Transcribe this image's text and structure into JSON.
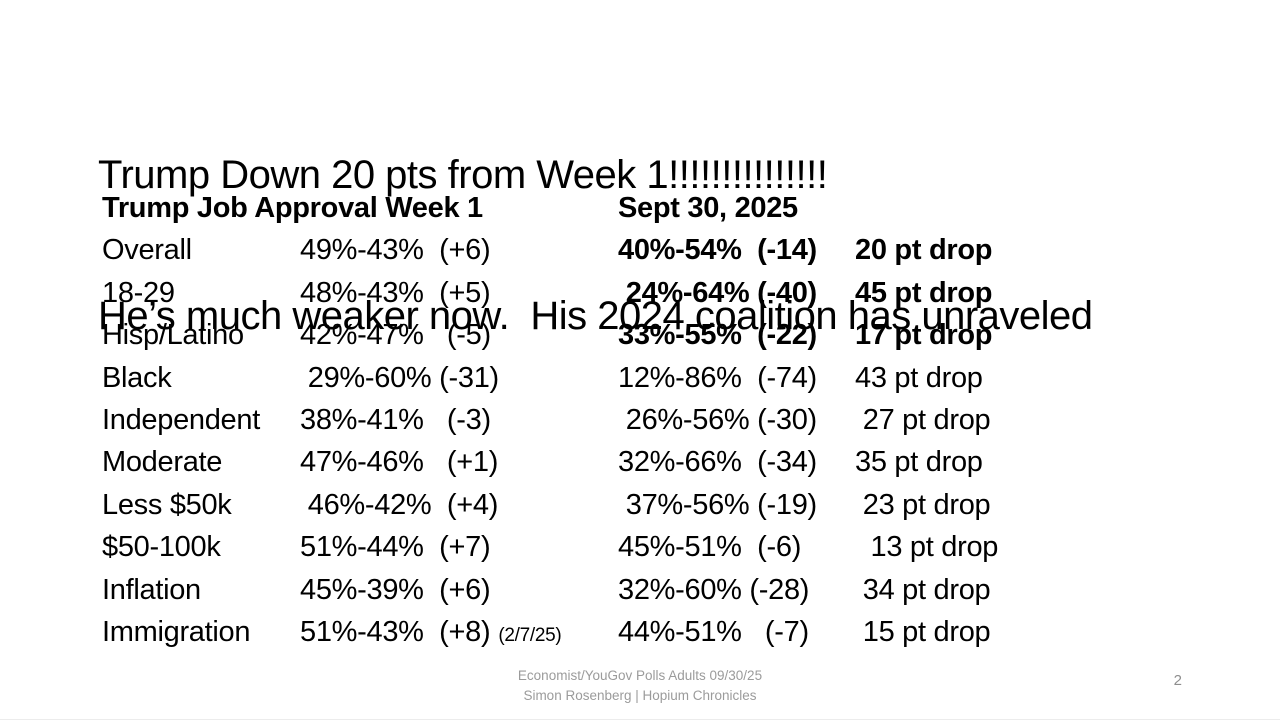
{
  "slide": {
    "title": {
      "line1": "Trump Down 20 pts from Week 1!!!!!!!!!!!!!!!",
      "line2": "He’s much weaker now.  His 2024 coalition has unraveled"
    },
    "table": {
      "header_left": "Trump Job Approval Week 1",
      "header_right": "Sept 30, 2025",
      "rows": [
        {
          "label": "Overall",
          "week1": "49%-43%  (+6)",
          "note": "",
          "sept": "40%-54%  (-14)",
          "drop": "20 pt drop",
          "bold": true
        },
        {
          "label": "18-29",
          "week1": "48%-43%  (+5)",
          "note": "",
          "sept": " 24%-64% (-40)",
          "drop": "45 pt drop",
          "bold": true
        },
        {
          "label": "Hisp/Latino",
          "week1": "42%-47%   (-5)",
          "note": "",
          "sept": "33%-55%  (-22)",
          "drop": "17 pt drop",
          "bold": true
        },
        {
          "label": "Black",
          "week1": " 29%-60% (-31)",
          "note": "",
          "sept": "12%-86%  (-74)",
          "drop": "43 pt drop",
          "bold": false
        },
        {
          "label": "Independent",
          "week1": "38%-41%   (-3)",
          "note": "",
          "sept": " 26%-56% (-30)",
          "drop": " 27 pt drop",
          "bold": false
        },
        {
          "label": "Moderate",
          "week1": "47%-46%   (+1)",
          "note": "",
          "sept": "32%-66%  (-34)",
          "drop": "35 pt drop",
          "bold": false
        },
        {
          "label": "Less $50k",
          "week1": " 46%-42%  (+4)",
          "note": "",
          "sept": " 37%-56% (-19)",
          "drop": " 23 pt drop",
          "bold": false
        },
        {
          "label": "$50-100k",
          "week1": "51%-44%  (+7)",
          "note": "",
          "sept": "45%-51%  (-6)",
          "drop": "  13 pt drop",
          "bold": false
        },
        {
          "label": "Inflation",
          "week1": "45%-39%  (+6)",
          "note": "",
          "sept": "32%-60% (-28)",
          "drop": " 34 pt drop",
          "bold": false
        },
        {
          "label": "Immigration",
          "week1": "51%-43%  (+8)",
          "note": "(2/7/25)",
          "sept": "44%-51%   (-7)",
          "drop": " 15 pt drop",
          "bold": false
        }
      ]
    },
    "footer": {
      "line1": "Economist/YouGov Polls Adults 09/30/25",
      "line2": "Simon Rosenberg | Hopium Chronicles",
      "page_number": "2"
    },
    "colors": {
      "text": "#000000",
      "footer_gray": "#9b9b9b",
      "page_gray": "#8e8e8e"
    }
  }
}
